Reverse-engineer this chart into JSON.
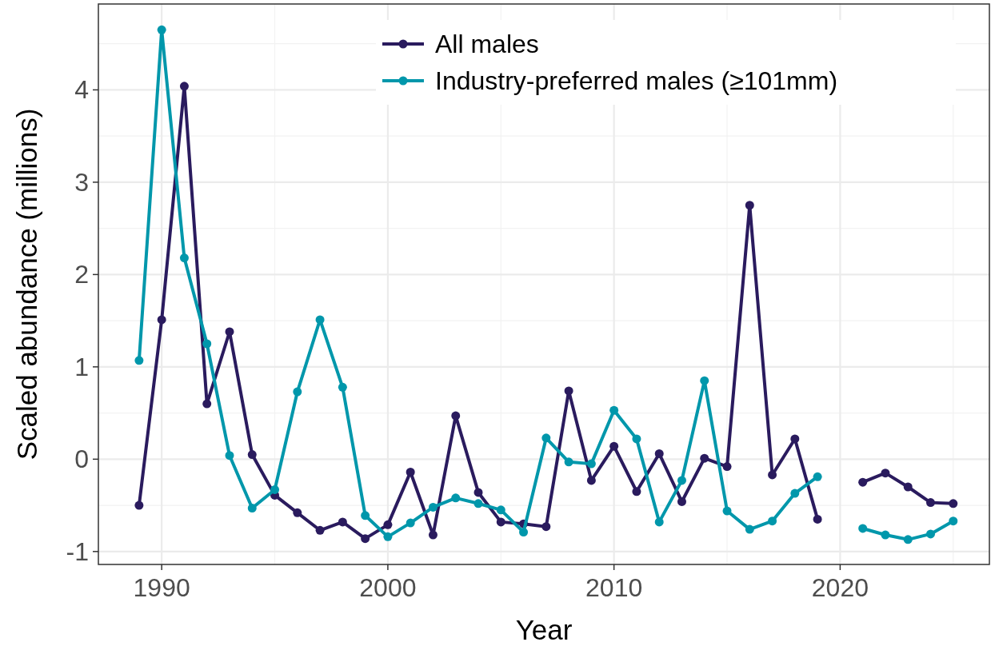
{
  "chart_data": {
    "type": "line",
    "xlabel": "Year",
    "ylabel": "Scaled abundance (millions)",
    "x": [
      1989,
      1990,
      1991,
      1992,
      1993,
      1994,
      1995,
      1996,
      1997,
      1998,
      1999,
      2000,
      2001,
      2002,
      2003,
      2004,
      2005,
      2006,
      2007,
      2008,
      2009,
      2010,
      2011,
      2012,
      2013,
      2014,
      2015,
      2016,
      2017,
      2018,
      2019,
      2020,
      2021,
      2022,
      2023,
      2024,
      2025
    ],
    "series": [
      {
        "name": "All males",
        "color": "#2a1b5e",
        "values": [
          -0.5,
          1.51,
          4.04,
          0.6,
          1.38,
          0.05,
          -0.39,
          -0.58,
          -0.77,
          -0.68,
          -0.86,
          -0.71,
          -0.14,
          -0.82,
          0.47,
          -0.36,
          -0.68,
          -0.7,
          -0.73,
          0.74,
          -0.23,
          0.14,
          -0.35,
          0.06,
          -0.46,
          0.01,
          -0.08,
          2.75,
          -0.17,
          0.22,
          -0.65,
          null,
          -0.25,
          -0.15,
          -0.3,
          -0.47,
          -0.48
        ]
      },
      {
        "name": "Industry-preferred males (≥101mm)",
        "color": "#0097ab",
        "values": [
          1.07,
          4.65,
          2.18,
          1.25,
          0.04,
          -0.53,
          -0.33,
          0.73,
          1.51,
          0.78,
          -0.61,
          -0.84,
          -0.69,
          -0.52,
          -0.42,
          -0.48,
          -0.55,
          -0.79,
          0.23,
          -0.03,
          -0.05,
          0.53,
          0.22,
          -0.68,
          -0.23,
          0.85,
          -0.56,
          -0.76,
          -0.67,
          -0.37,
          -0.19,
          null,
          -0.75,
          -0.82,
          -0.87,
          -0.81,
          -0.67
        ]
      }
    ],
    "xlim": [
      1987.2,
      2026.6
    ],
    "xticks": [
      1990,
      2000,
      2010,
      2020
    ],
    "ylim": [
      -1.14,
      4.93
    ],
    "yticks": [
      -1,
      0,
      1,
      2,
      3,
      4
    ],
    "grid": true,
    "legend": "top",
    "marker": "circle",
    "line_style": "solid"
  }
}
